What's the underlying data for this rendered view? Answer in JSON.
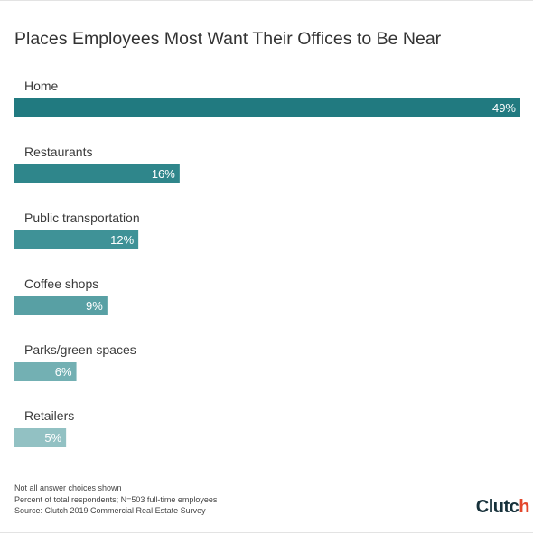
{
  "chart_data": {
    "type": "bar",
    "orientation": "horizontal",
    "title": "Places Employees Most Want Their Offices to Be Near",
    "categories": [
      "Home",
      "Restaurants",
      "Public transportation",
      "Coffee shops",
      "Parks/green spaces",
      "Retailers"
    ],
    "values": [
      49,
      16,
      12,
      9,
      6,
      5
    ],
    "value_labels": [
      "49%",
      "16%",
      "12%",
      "9%",
      "6%",
      "5%"
    ],
    "bar_colors": [
      "#217a80",
      "#2f868b",
      "#3f9297",
      "#58a0a4",
      "#73b0b3",
      "#92c1c3"
    ],
    "xlim": [
      0,
      49
    ],
    "grid": false,
    "legend": "none"
  },
  "notes": [
    "Not all answer choices shown",
    "Percent of total respondents; N=503 full-time employees",
    "Source: Clutch 2019 Commercial Real Estate Survey"
  ],
  "logo": {
    "text": "Clutch",
    "main": "Clutc",
    "accent": "h",
    "accent_color": "#e3472c"
  }
}
